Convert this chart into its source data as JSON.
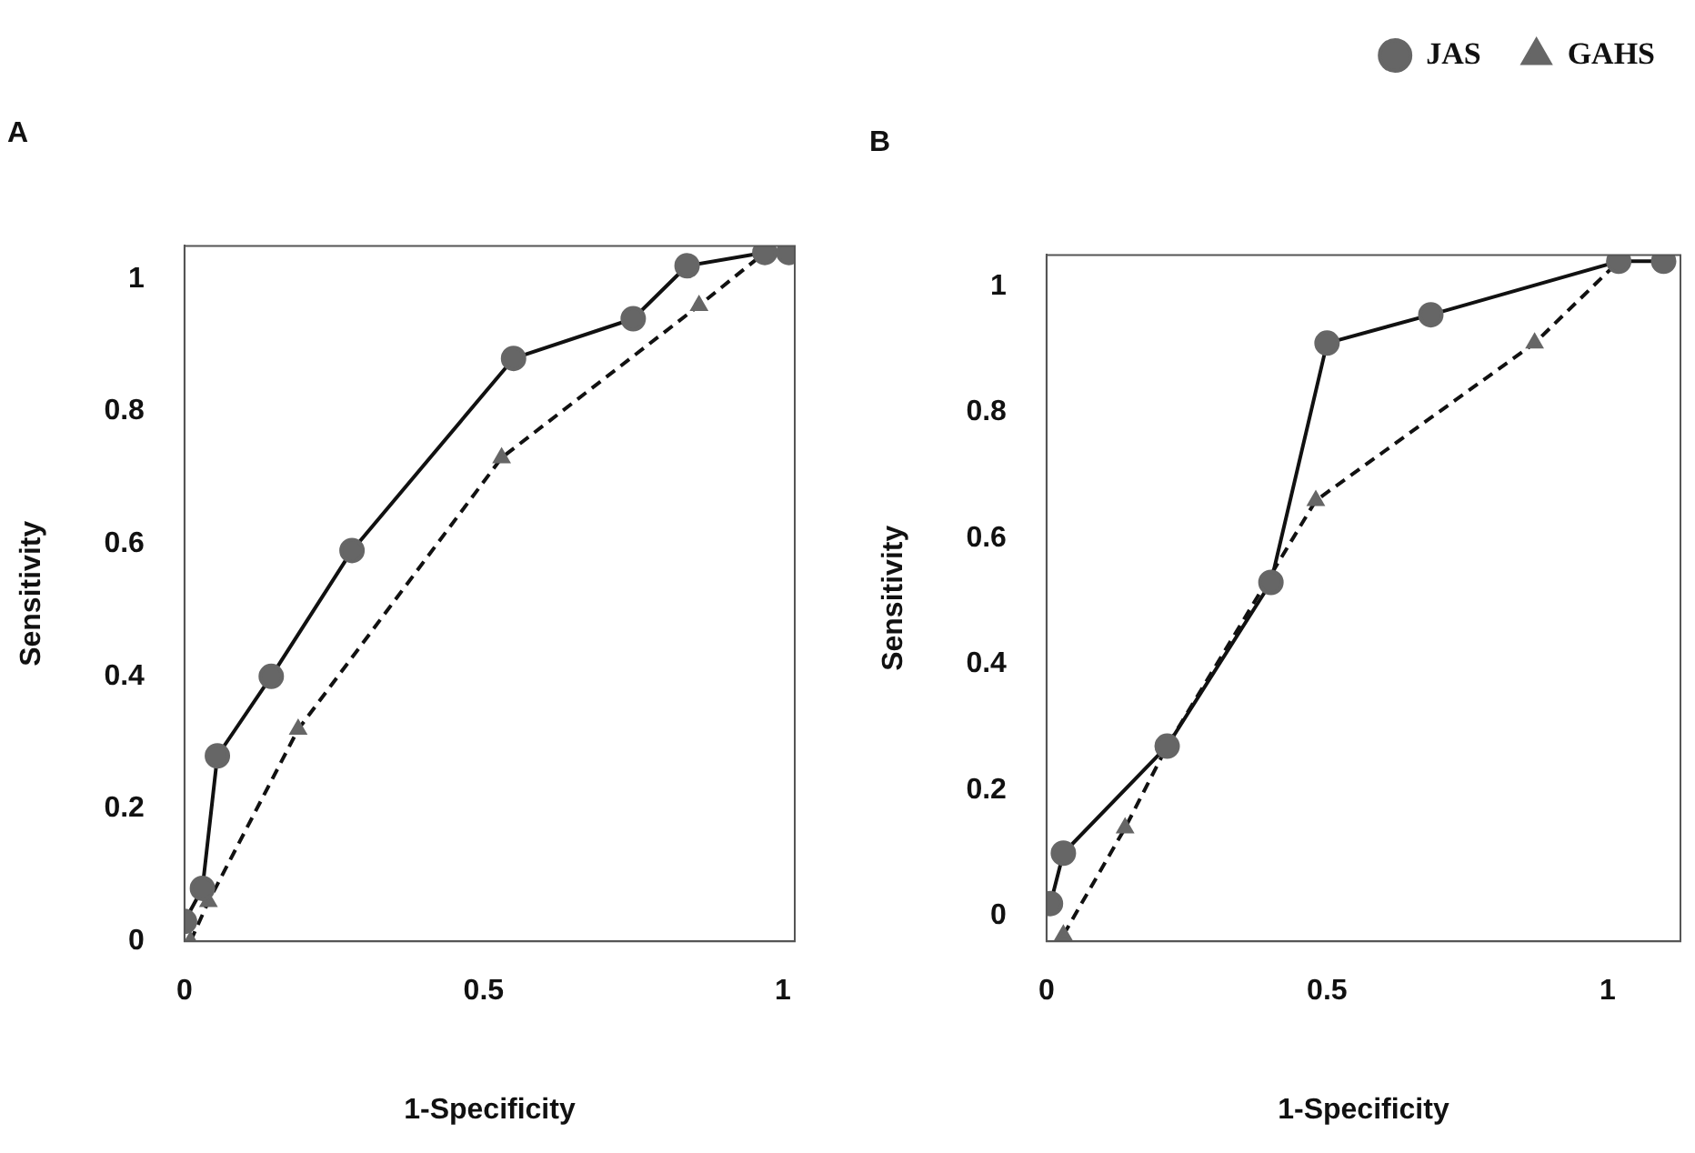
{
  "chart_data": [
    {
      "type": "line",
      "title": "A",
      "xlabel": "1-Specificity",
      "ylabel": "Sensitivity",
      "xlim": [
        0,
        1.02
      ],
      "ylim": [
        0,
        1.05
      ],
      "xticks": [
        0,
        0.5,
        1
      ],
      "yticks": [
        0,
        0.2,
        0.4,
        0.6,
        0.8,
        1
      ],
      "grid": false,
      "series": [
        {
          "color": "#666666",
          "marker": "circle",
          "line_style": "solid",
          "x": [
            0,
            0.03,
            0.055,
            0.145,
            0.28,
            0.55,
            0.75,
            0.84,
            0.97,
            1.01
          ],
          "values": [
            0.03,
            0.08,
            0.28,
            0.4,
            0.59,
            0.88,
            0.94,
            1.02,
            1.04,
            1.04
          ]
        },
        {
          "color": "#666666",
          "marker": "triangle",
          "line_style": "dashed",
          "x": [
            0.01,
            0.04,
            0.19,
            0.53,
            0.86,
            0.97
          ],
          "values": [
            0,
            0.06,
            0.32,
            0.73,
            0.96,
            1.04
          ]
        }
      ]
    },
    {
      "type": "line",
      "title": "B",
      "xlabel": "1-Specificity",
      "ylabel": "Sensitivity",
      "xlim": [
        0,
        1.13
      ],
      "ylim": [
        -0.04,
        1.05
      ],
      "xticks": [
        0,
        0.5,
        1
      ],
      "yticks": [
        0,
        0.2,
        0.4,
        0.6,
        0.8,
        1
      ],
      "grid": false,
      "legend": "top right",
      "series": [
        {
          "name": "JAS",
          "color": "#666666",
          "marker": "circle",
          "line_style": "solid",
          "x": [
            0.007,
            0.03,
            0.215,
            0.4,
            0.5,
            0.685,
            1.02,
            1.1
          ],
          "values": [
            0.02,
            0.1,
            0.27,
            0.53,
            0.91,
            0.955,
            1.04,
            1.04
          ]
        },
        {
          "name": "GAHS",
          "color": "#666666",
          "marker": "triangle",
          "line_style": "dashed",
          "x": [
            0.03,
            0.14,
            0.215,
            0.48,
            0.87,
            1.02
          ],
          "values": [
            -0.03,
            0.14,
            0.27,
            0.66,
            0.91,
            1.04
          ]
        }
      ]
    }
  ]
}
